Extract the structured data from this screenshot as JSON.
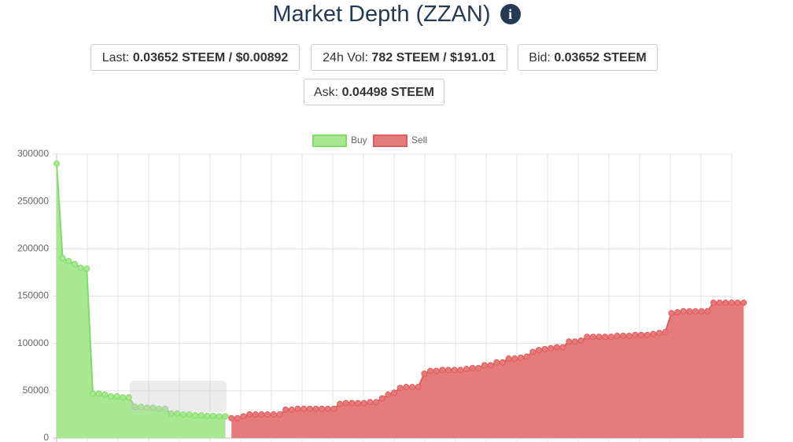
{
  "header": {
    "title": "Market Depth (ZZAN)"
  },
  "stats": [
    {
      "label": "Last:",
      "value": "0.03652 STEEM / $0.00892"
    },
    {
      "label": "24h Vol:",
      "value": "782 STEEM / $191.01"
    },
    {
      "label": "Bid:",
      "value": "0.03652 STEEM"
    },
    {
      "label": "Ask:",
      "value": "0.04498 STEEM"
    }
  ],
  "chart_data": {
    "type": "area",
    "ylim": [
      0,
      300000
    ],
    "yticks": [
      0,
      50000,
      100000,
      150000,
      200000,
      250000,
      300000
    ],
    "grid": true,
    "legend": "top",
    "series": [
      {
        "name": "Buy",
        "color": "#7fdc6a",
        "fill": "#a8e890",
        "values": [
          290000,
          190000,
          187000,
          184000,
          180000,
          179000,
          47000,
          47000,
          46000,
          44000,
          44000,
          43000,
          43000,
          33000,
          33000,
          32000,
          32000,
          31000,
          31000,
          26000,
          26000,
          25000,
          25000,
          24000,
          24000,
          23500,
          23500,
          23000,
          23000,
          null,
          null,
          null,
          null,
          null,
          null,
          null,
          null,
          null,
          null,
          null,
          null,
          null,
          null,
          null,
          null,
          null,
          null,
          null,
          null,
          null,
          null,
          null,
          null,
          null,
          null,
          null,
          null,
          null,
          null,
          null,
          null,
          null,
          null,
          null,
          null,
          null,
          null,
          null,
          null,
          null,
          null,
          null,
          null,
          null,
          null,
          null,
          null,
          null,
          null,
          null,
          null,
          null,
          null,
          null,
          null,
          null,
          null,
          null,
          null,
          null,
          null,
          null,
          null,
          null,
          null,
          null,
          null,
          null,
          null,
          null,
          null,
          null,
          null,
          null,
          null,
          null,
          null,
          null,
          null,
          null,
          null,
          null,
          null
        ]
      },
      {
        "name": "Sell",
        "color": "#e05d5d",
        "fill": "#e57b7b",
        "values": [
          null,
          null,
          null,
          null,
          null,
          null,
          null,
          null,
          null,
          null,
          null,
          null,
          null,
          null,
          null,
          null,
          null,
          null,
          null,
          null,
          null,
          null,
          null,
          null,
          null,
          null,
          null,
          null,
          null,
          21000,
          21000,
          23000,
          25000,
          25000,
          25000,
          25000,
          25000,
          25000,
          30000,
          30000,
          31000,
          31000,
          31000,
          31000,
          31000,
          31000,
          31000,
          36000,
          37000,
          37000,
          37000,
          37000,
          38000,
          38000,
          42000,
          46000,
          48000,
          53000,
          54000,
          54000,
          54000,
          68000,
          71000,
          71000,
          72000,
          72000,
          72000,
          72000,
          73000,
          74000,
          74000,
          77000,
          77000,
          80000,
          80000,
          84000,
          84000,
          85000,
          86000,
          91000,
          93000,
          94000,
          95000,
          96000,
          96000,
          102000,
          102000,
          103000,
          107000,
          107000,
          107000,
          107000,
          107000,
          108000,
          108000,
          108000,
          109000,
          109000,
          109000,
          110000,
          111000,
          112000,
          132000,
          133000,
          134000,
          134000,
          134000,
          134000,
          134000,
          143000,
          143000,
          143000,
          143000,
          143000,
          143000
        ]
      }
    ]
  }
}
